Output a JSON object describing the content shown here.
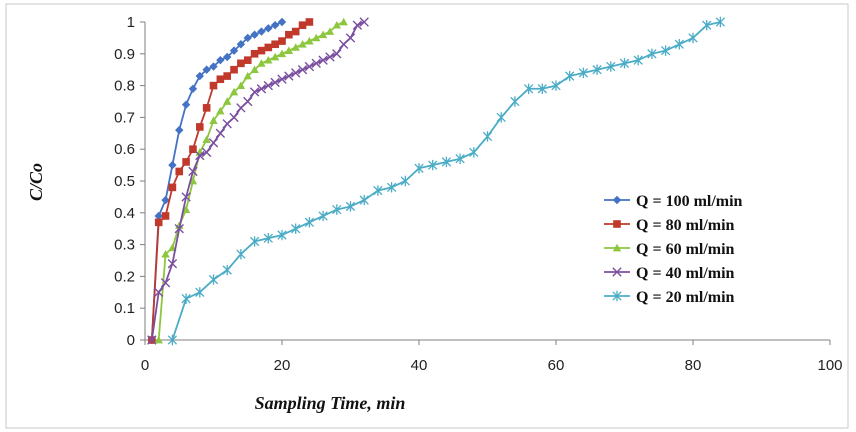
{
  "chart_data": {
    "type": "line",
    "title": "",
    "xlabel": "Sampling Time, min",
    "ylabel": "C/Co",
    "xlim": [
      0,
      100
    ],
    "ylim": [
      0,
      1
    ],
    "x_ticks": [
      0,
      20,
      40,
      60,
      80,
      100
    ],
    "y_ticks": [
      0,
      0.1,
      0.2,
      0.3,
      0.4,
      0.5,
      0.6,
      0.7,
      0.8,
      0.9,
      1
    ],
    "x_tick_labels": [
      "0",
      "20",
      "40",
      "60",
      "80",
      "100"
    ],
    "y_tick_labels": [
      "0",
      "0.1",
      "0.2",
      "0.3",
      "0.4",
      "0.5",
      "0.6",
      "0.7",
      "0.8",
      "0.9",
      "1"
    ],
    "grid": false,
    "legend_position": "right",
    "series": [
      {
        "name": "Q = 100 ml/min",
        "color": "#4472C4",
        "marker": "diamond",
        "points": [
          [
            1,
            0
          ],
          [
            2,
            0.39
          ],
          [
            3,
            0.44
          ],
          [
            4,
            0.55
          ],
          [
            5,
            0.66
          ],
          [
            6,
            0.74
          ],
          [
            7,
            0.79
          ],
          [
            8,
            0.83
          ],
          [
            9,
            0.85
          ],
          [
            10,
            0.86
          ],
          [
            11,
            0.88
          ],
          [
            12,
            0.89
          ],
          [
            13,
            0.91
          ],
          [
            14,
            0.93
          ],
          [
            15,
            0.95
          ],
          [
            16,
            0.96
          ],
          [
            17,
            0.97
          ],
          [
            18,
            0.98
          ],
          [
            19,
            0.99
          ],
          [
            20,
            1.0
          ]
        ]
      },
      {
        "name": "Q = 80 ml/min",
        "color": "#C0392B",
        "marker": "square",
        "points": [
          [
            1,
            0
          ],
          [
            2,
            0.37
          ],
          [
            3,
            0.39
          ],
          [
            4,
            0.48
          ],
          [
            5,
            0.53
          ],
          [
            6,
            0.56
          ],
          [
            7,
            0.6
          ],
          [
            8,
            0.67
          ],
          [
            9,
            0.73
          ],
          [
            10,
            0.8
          ],
          [
            11,
            0.82
          ],
          [
            12,
            0.83
          ],
          [
            13,
            0.85
          ],
          [
            14,
            0.87
          ],
          [
            15,
            0.88
          ],
          [
            16,
            0.9
          ],
          [
            17,
            0.91
          ],
          [
            18,
            0.92
          ],
          [
            19,
            0.93
          ],
          [
            20,
            0.94
          ],
          [
            21,
            0.96
          ],
          [
            22,
            0.97
          ],
          [
            23,
            0.99
          ],
          [
            24,
            1.0
          ]
        ]
      },
      {
        "name": "Q = 60 ml/min",
        "color": "#8DC63F",
        "marker": "triangle",
        "points": [
          [
            2,
            0
          ],
          [
            3,
            0.27
          ],
          [
            4,
            0.29
          ],
          [
            5,
            0.36
          ],
          [
            6,
            0.41
          ],
          [
            7,
            0.5
          ],
          [
            8,
            0.59
          ],
          [
            9,
            0.63
          ],
          [
            10,
            0.69
          ],
          [
            11,
            0.72
          ],
          [
            12,
            0.75
          ],
          [
            13,
            0.78
          ],
          [
            14,
            0.8
          ],
          [
            15,
            0.83
          ],
          [
            16,
            0.85
          ],
          [
            17,
            0.87
          ],
          [
            18,
            0.88
          ],
          [
            19,
            0.89
          ],
          [
            20,
            0.9
          ],
          [
            21,
            0.91
          ],
          [
            22,
            0.92
          ],
          [
            23,
            0.93
          ],
          [
            24,
            0.94
          ],
          [
            25,
            0.95
          ],
          [
            26,
            0.96
          ],
          [
            27,
            0.97
          ],
          [
            28,
            0.99
          ],
          [
            29,
            1.0
          ]
        ]
      },
      {
        "name": "Q = 40 ml/min",
        "color": "#7B4FA0",
        "marker": "x",
        "points": [
          [
            1,
            0
          ],
          [
            2,
            0.15
          ],
          [
            3,
            0.18
          ],
          [
            4,
            0.24
          ],
          [
            5,
            0.35
          ],
          [
            6,
            0.45
          ],
          [
            7,
            0.53
          ],
          [
            8,
            0.58
          ],
          [
            9,
            0.59
          ],
          [
            10,
            0.62
          ],
          [
            11,
            0.65
          ],
          [
            12,
            0.68
          ],
          [
            13,
            0.7
          ],
          [
            14,
            0.73
          ],
          [
            15,
            0.75
          ],
          [
            16,
            0.78
          ],
          [
            17,
            0.79
          ],
          [
            18,
            0.8
          ],
          [
            19,
            0.81
          ],
          [
            20,
            0.82
          ],
          [
            21,
            0.83
          ],
          [
            22,
            0.84
          ],
          [
            23,
            0.85
          ],
          [
            24,
            0.86
          ],
          [
            25,
            0.87
          ],
          [
            26,
            0.88
          ],
          [
            27,
            0.89
          ],
          [
            28,
            0.9
          ],
          [
            29,
            0.93
          ],
          [
            30,
            0.95
          ],
          [
            31,
            0.99
          ],
          [
            32,
            1.0
          ]
        ]
      },
      {
        "name": "Q = 20 ml/min",
        "color": "#4BACC6",
        "marker": "star",
        "points": [
          [
            4,
            0
          ],
          [
            6,
            0.13
          ],
          [
            8,
            0.15
          ],
          [
            10,
            0.19
          ],
          [
            12,
            0.22
          ],
          [
            14,
            0.27
          ],
          [
            16,
            0.31
          ],
          [
            18,
            0.32
          ],
          [
            20,
            0.33
          ],
          [
            22,
            0.35
          ],
          [
            24,
            0.37
          ],
          [
            26,
            0.39
          ],
          [
            28,
            0.41
          ],
          [
            30,
            0.42
          ],
          [
            32,
            0.44
          ],
          [
            34,
            0.47
          ],
          [
            36,
            0.48
          ],
          [
            38,
            0.5
          ],
          [
            40,
            0.54
          ],
          [
            42,
            0.55
          ],
          [
            44,
            0.56
          ],
          [
            46,
            0.57
          ],
          [
            48,
            0.59
          ],
          [
            50,
            0.64
          ],
          [
            52,
            0.7
          ],
          [
            54,
            0.75
          ],
          [
            56,
            0.79
          ],
          [
            58,
            0.79
          ],
          [
            60,
            0.8
          ],
          [
            62,
            0.83
          ],
          [
            64,
            0.84
          ],
          [
            66,
            0.85
          ],
          [
            68,
            0.86
          ],
          [
            70,
            0.87
          ],
          [
            72,
            0.88
          ],
          [
            74,
            0.9
          ],
          [
            76,
            0.91
          ],
          [
            78,
            0.93
          ],
          [
            80,
            0.95
          ],
          [
            82,
            0.99
          ],
          [
            84,
            1.0
          ]
        ]
      }
    ]
  }
}
